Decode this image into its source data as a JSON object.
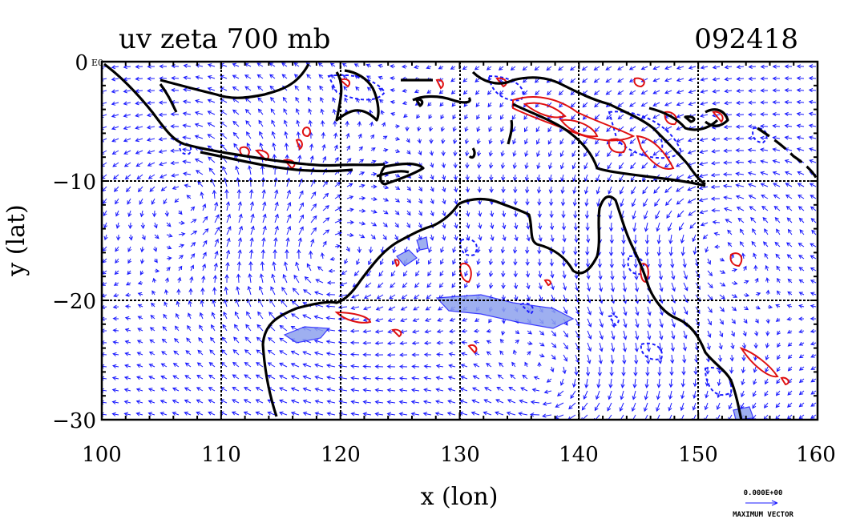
{
  "title": "uv zeta 700 mb",
  "timestamp": "092418",
  "xaxis": {
    "label": "x (lon)",
    "ticks": [
      100,
      110,
      120,
      130,
      140,
      150,
      160
    ],
    "tick_labels": [
      "100",
      "110",
      "120",
      "130",
      "140",
      "150",
      "160"
    ],
    "range": [
      100,
      160
    ]
  },
  "yaxis": {
    "label": "y (lat)",
    "ticks": [
      0,
      -10,
      -20,
      -30
    ],
    "tick_labels": [
      "0",
      "−10",
      "−20",
      "−30"
    ],
    "range": [
      -30,
      0
    ],
    "corner_mark": "E0"
  },
  "legend": {
    "vector_value": "0.000E+00",
    "vector_label": "MAXIMUM VECTOR"
  },
  "colors": {
    "vectors": "#1a1aff",
    "positive_contour": "#e01010",
    "negative_contour": "#1a1aff",
    "negative_fill": "#8ea2ee",
    "coastline": "#000000",
    "grid": "#000000"
  }
}
